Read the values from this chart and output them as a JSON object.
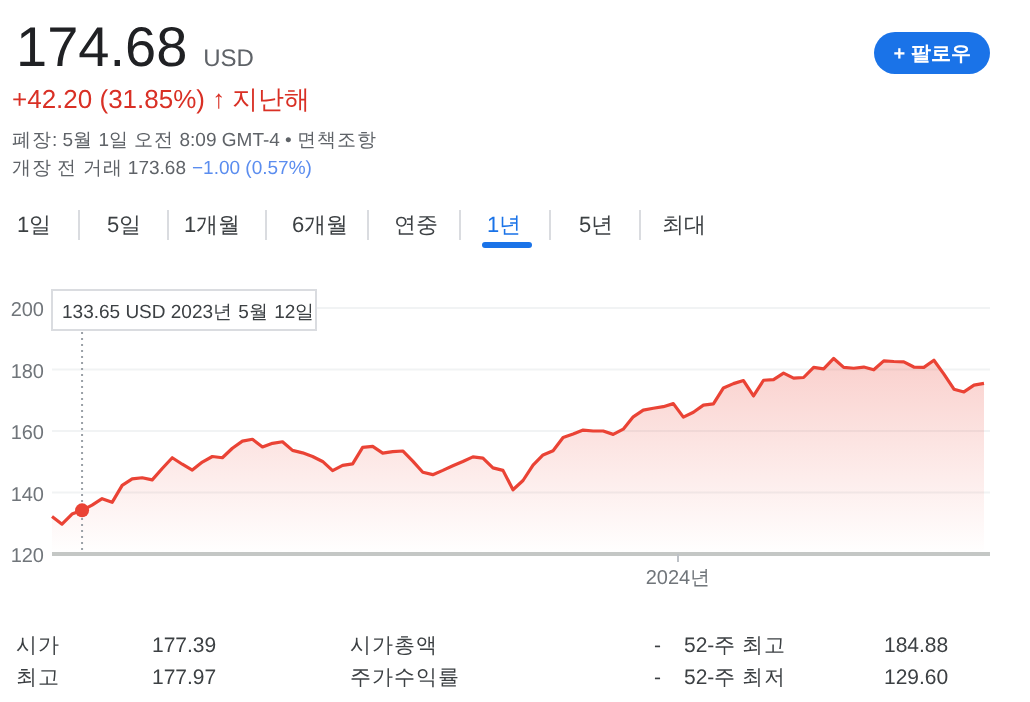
{
  "chart_data": {
    "type": "area",
    "title": "174.68",
    "subtitle": "USD",
    "color": "#ea4335",
    "categories": [
      null,
      null,
      null,
      null,
      null,
      null,
      null,
      null,
      null,
      null,
      null,
      null,
      null,
      null,
      null,
      null,
      null,
      null,
      null,
      null,
      null,
      null,
      null,
      null,
      null,
      null,
      null,
      null,
      null,
      null,
      null,
      null,
      null,
      null,
      null,
      null,
      null,
      null,
      null,
      null,
      null,
      null,
      null,
      null,
      null,
      null,
      null,
      null,
      null,
      null,
      null,
      null,
      null,
      null,
      null,
      null,
      null,
      null,
      null,
      null,
      null,
      null,
      null,
      null,
      null,
      null,
      null,
      null,
      null,
      null,
      null,
      null,
      null,
      null,
      null,
      null,
      null,
      null,
      null,
      null,
      null,
      null,
      null,
      null,
      null,
      null,
      null,
      null,
      null,
      null,
      null,
      null,
      null,
      null
    ],
    "values": [
      132.2,
      129.7,
      133.0,
      134.2,
      135.9,
      138.0,
      136.8,
      142.3,
      144.4,
      144.8,
      144.1,
      147.8,
      151.3,
      149.2,
      147.3,
      149.9,
      151.7,
      151.3,
      154.4,
      156.7,
      157.3,
      154.8,
      156.0,
      156.5,
      153.7,
      152.9,
      151.7,
      150.1,
      147.1,
      148.8,
      149.3,
      154.7,
      155.0,
      152.8,
      153.3,
      153.5,
      150.2,
      146.6,
      145.8,
      147.2,
      148.7,
      150.1,
      151.6,
      151.2,
      148.0,
      147.2,
      140.9,
      143.9,
      148.9,
      152.2,
      153.6,
      157.9,
      159.0,
      160.3,
      160.0,
      160.0,
      158.9,
      160.6,
      164.6,
      166.8,
      167.4,
      167.9,
      168.9,
      164.5,
      166.1,
      168.4,
      168.8,
      174.0,
      175.4,
      176.4,
      171.4,
      176.5,
      176.7,
      178.8,
      177.2,
      177.4,
      180.7,
      180.2,
      183.6,
      180.7,
      180.4,
      180.8,
      179.9,
      182.8,
      182.6,
      182.5,
      180.8,
      180.7,
      183.0,
      178.5,
      173.6,
      172.7,
      174.9,
      175.5
    ],
    "ylim": [
      120,
      200
    ],
    "yticks": [
      120,
      140,
      160,
      180,
      200
    ],
    "grid": "y",
    "annotations": [
      "+42.20 (31.85%) ↑ 지난해",
      "폐장: 5월 1일 오전 8:09 GMT-4 • 면책조항",
      "개장 전 거래 173.68",
      "−1.00 (0.57%)",
      "+ 팔로우",
      "1일",
      "5일",
      "1개월",
      "6개월",
      "연중",
      "1년",
      "5년",
      "최대",
      "시가",
      "177.39",
      "시가총액",
      "-",
      "52-주 최고",
      "184.88",
      "최고",
      "177.97",
      "주가수익률",
      "-",
      "52-주 최저",
      "129.60",
      "133.65 USD  2023년 5월 12일",
      "2024년"
    ]
  }
}
